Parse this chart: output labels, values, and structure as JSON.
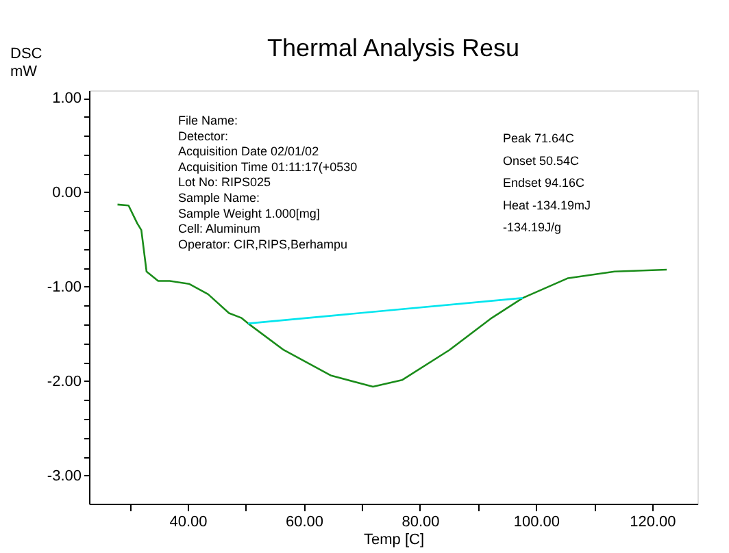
{
  "chart_data": {
    "type": "line",
    "title": "Thermal Analysis Resu",
    "xlabel": "Temp [C]",
    "ylabel": "DSC mW",
    "series": [
      {
        "color": "#1a8c1a",
        "x": [
          27.9,
          29.8,
          31.3,
          32.0,
          32.9,
          34.9,
          36.9,
          40.2,
          43.5,
          47.1,
          49.2,
          50.4,
          56.5,
          64.6,
          71.9,
          76.9,
          85.1,
          92.4,
          97.7,
          105.5,
          113.5,
          122.5
        ],
        "values": [
          -0.13,
          -0.14,
          -0.33,
          -0.4,
          -0.84,
          -0.94,
          -0.94,
          -0.97,
          -1.08,
          -1.28,
          -1.33,
          -1.39,
          -1.67,
          -1.94,
          -2.06,
          -1.99,
          -1.67,
          -1.33,
          -1.12,
          -0.91,
          -0.84,
          -0.82
        ]
      },
      {
        "color": "#00e5ee",
        "x": [
          50.4,
          97.7
        ],
        "values": [
          -1.39,
          -1.12
        ]
      }
    ],
    "xlim": [
      23,
      127.8
    ],
    "ylim": [
      -3.3,
      1.08
    ],
    "xticks": [
      {
        "value": 30,
        "label": null
      },
      {
        "value": 40,
        "label": "40.00"
      },
      {
        "value": 50,
        "label": null
      },
      {
        "value": 60,
        "label": "60.00"
      },
      {
        "value": 70,
        "label": null
      },
      {
        "value": 80,
        "label": "80.00"
      },
      {
        "value": 90,
        "label": null
      },
      {
        "value": 100,
        "label": "100.00"
      },
      {
        "value": 110,
        "label": null
      },
      {
        "value": 120,
        "label": "120.00"
      }
    ],
    "yticks": [
      {
        "value": 1,
        "label": "1.00"
      },
      {
        "value": 0.8,
        "label": null
      },
      {
        "value": 0.6,
        "label": null
      },
      {
        "value": 0.4,
        "label": null
      },
      {
        "value": 0.2,
        "label": null
      },
      {
        "value": 0,
        "label": "0.00"
      },
      {
        "value": -0.2,
        "label": null
      },
      {
        "value": -0.4,
        "label": null
      },
      {
        "value": -0.6,
        "label": null
      },
      {
        "value": -0.8,
        "label": null
      },
      {
        "value": -1,
        "label": "-1.00"
      },
      {
        "value": -1.2,
        "label": null
      },
      {
        "value": -1.4,
        "label": null
      },
      {
        "value": -1.6,
        "label": null
      },
      {
        "value": -1.8,
        "label": null
      },
      {
        "value": -2,
        "label": "-2.00"
      },
      {
        "value": -2.2,
        "label": null
      },
      {
        "value": -2.4,
        "label": null
      },
      {
        "value": -2.6,
        "label": null
      },
      {
        "value": -2.8,
        "label": null
      },
      {
        "value": -3,
        "label": "-3.00"
      }
    ],
    "grid": false,
    "legend": false,
    "line_style": "solid",
    "marker": "none",
    "annotations": [
      "File Name:",
      "Detector:",
      "Acquisition Date 02/01/02",
      "Acquisition Time 01:11:17(+0530",
      "Lot No: RIPS025",
      "Sample Name:",
      "Sample Weight 1.000[mg]",
      "Cell: Aluminum",
      "Operator: CIR,RIPS,Berhampu",
      "Peak 71.64C",
      "Onset 50.54C",
      "Endset 94.16C",
      "Heat -134.19mJ",
      "-134.19J/g"
    ]
  }
}
